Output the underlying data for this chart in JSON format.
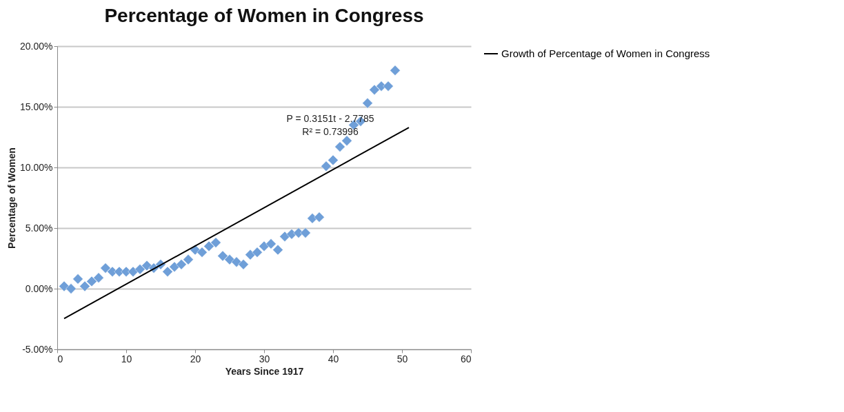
{
  "chart_data": {
    "type": "scatter",
    "title": "Percentage of Women in Congress",
    "xlabel": "Years Since 1917",
    "ylabel": "Percentage of Women",
    "x": [
      1,
      2,
      3,
      4,
      5,
      6,
      7,
      8,
      9,
      10,
      11,
      12,
      13,
      14,
      15,
      16,
      17,
      18,
      19,
      20,
      21,
      22,
      23,
      24,
      25,
      26,
      27,
      28,
      29,
      30,
      31,
      32,
      33,
      34,
      35,
      36,
      37,
      38,
      39,
      40,
      41,
      42,
      43,
      44,
      45,
      46,
      47,
      48,
      49
    ],
    "series": [
      {
        "color": "#6f9fd8",
        "marker": "diamond",
        "values": [
          0.2,
          0.0,
          0.8,
          0.2,
          0.6,
          0.9,
          1.7,
          1.4,
          1.4,
          1.4,
          1.4,
          1.6,
          1.9,
          1.7,
          2.0,
          1.4,
          1.8,
          2.0,
          2.4,
          3.2,
          3.0,
          3.5,
          3.8,
          2.7,
          2.4,
          2.2,
          2.0,
          2.8,
          3.0,
          3.5,
          3.7,
          3.2,
          4.3,
          4.5,
          4.6,
          4.6,
          5.8,
          5.9,
          10.1,
          10.6,
          11.7,
          12.2,
          13.5,
          13.8,
          15.3,
          16.4,
          16.7,
          16.7,
          18.0
        ]
      },
      {
        "type": "line",
        "name": "Growth of Percentage of Women in Congress",
        "color": "#000000",
        "marker": "none",
        "x": [
          1,
          51
        ],
        "values": [
          -2.46,
          13.29
        ]
      }
    ],
    "annotations": [
      "P = 0.3151t - 2.7785",
      "R² = 0.73996"
    ],
    "xlim": [
      0,
      60
    ],
    "xticks": [
      0,
      10,
      20,
      30,
      40,
      50,
      60
    ],
    "ylim": [
      -5,
      20
    ],
    "yticks": [
      {
        "value": -5,
        "label": "-5.00%"
      },
      {
        "value": 0,
        "label": "0.00%"
      },
      {
        "value": 5,
        "label": "5.00%"
      },
      {
        "value": 10,
        "label": "10.00%"
      },
      {
        "value": 15,
        "label": "15.00%"
      },
      {
        "value": 20,
        "label": "20.00%"
      }
    ],
    "grid": "y",
    "legend": "right"
  }
}
